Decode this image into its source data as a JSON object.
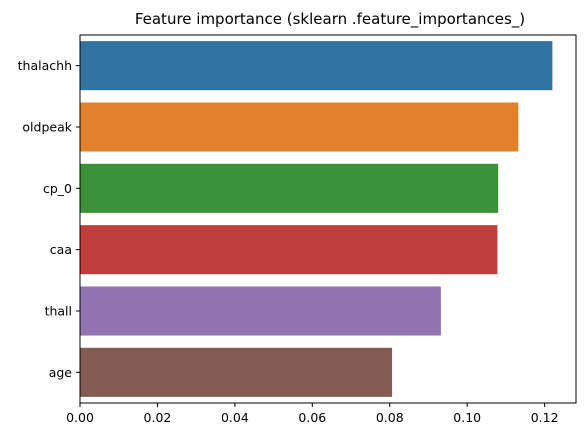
{
  "chart_data": {
    "type": "bar",
    "orientation": "horizontal",
    "title": "Feature importance (sklearn .feature_importances_)",
    "xlabel": "",
    "ylabel": "",
    "categories": [
      "thalachh",
      "oldpeak",
      "cp_0",
      "caa",
      "thall",
      "age"
    ],
    "values": [
      0.122,
      0.1132,
      0.108,
      0.1078,
      0.0932,
      0.0806
    ],
    "colors": [
      "#3274a1",
      "#e1812c",
      "#3a923a",
      "#c03d3e",
      "#9372b2",
      "#845b53"
    ],
    "xlim": [
      0,
      0.1281
    ],
    "xticks": [
      "0.00",
      "0.02",
      "0.04",
      "0.06",
      "0.08",
      "0.10",
      "0.12"
    ],
    "grid": false,
    "legend": "none"
  }
}
